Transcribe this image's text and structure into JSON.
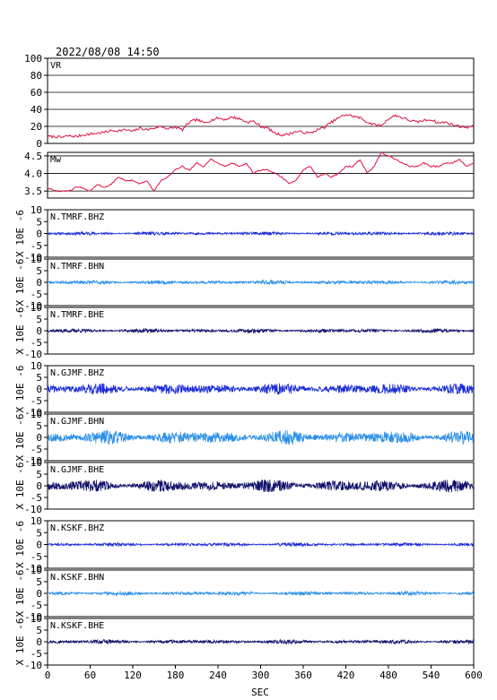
{
  "header": {
    "timestamp": "2022/08/08  14:50"
  },
  "chart_data": {
    "type": "line",
    "xlabel": "SEC",
    "xlim": [
      0,
      600
    ],
    "xticks": [
      "0",
      "60",
      "120",
      "180",
      "240",
      "300",
      "360",
      "420",
      "480",
      "540",
      "600"
    ],
    "seis_ylabel": "X 10E -6",
    "panels": [
      {
        "id": "vr",
        "label": "VR",
        "color": "#dd1144",
        "ylim": [
          0,
          100
        ],
        "yticks": [
          "0",
          "20",
          "40",
          "60",
          "80",
          "100"
        ],
        "grid": true,
        "x": [
          0,
          10,
          20,
          30,
          40,
          50,
          60,
          70,
          80,
          90,
          100,
          110,
          120,
          130,
          140,
          150,
          160,
          170,
          180,
          190,
          200,
          210,
          220,
          230,
          240,
          250,
          260,
          270,
          280,
          290,
          300,
          310,
          320,
          330,
          340,
          350,
          360,
          370,
          380,
          390,
          400,
          410,
          420,
          430,
          440,
          450,
          460,
          470,
          480,
          490,
          500,
          510,
          520,
          530,
          540,
          550,
          560,
          570,
          580,
          590,
          600
        ],
        "values": [
          8,
          8,
          7,
          9,
          8,
          10,
          11,
          12,
          13,
          15,
          15,
          16,
          14,
          18,
          16,
          18,
          20,
          17,
          19,
          16,
          25,
          28,
          24,
          27,
          30,
          28,
          31,
          29,
          25,
          26,
          20,
          18,
          12,
          10,
          11,
          14,
          13,
          12,
          16,
          19,
          25,
          30,
          34,
          32,
          30,
          25,
          22,
          21,
          29,
          33,
          30,
          27,
          25,
          27,
          28,
          24,
          25,
          22,
          20,
          19,
          20
        ]
      },
      {
        "id": "mw",
        "label": "Mw",
        "color": "#dd1144",
        "ylim": [
          3.3,
          4.6
        ],
        "yticks": [
          "3.5",
          "4.0",
          "4.5"
        ],
        "grid": true,
        "x": [
          0,
          10,
          20,
          30,
          40,
          50,
          60,
          70,
          80,
          90,
          100,
          110,
          120,
          130,
          140,
          150,
          160,
          170,
          180,
          190,
          200,
          210,
          220,
          230,
          240,
          250,
          260,
          270,
          280,
          290,
          300,
          310,
          320,
          330,
          340,
          350,
          360,
          370,
          380,
          390,
          400,
          410,
          420,
          430,
          440,
          450,
          460,
          470,
          480,
          490,
          500,
          510,
          520,
          530,
          540,
          550,
          560,
          570,
          580,
          590,
          600
        ],
        "values": [
          3.6,
          3.5,
          3.5,
          3.5,
          3.6,
          3.6,
          3.5,
          3.7,
          3.6,
          3.7,
          3.9,
          3.8,
          3.8,
          3.7,
          3.8,
          3.5,
          3.8,
          3.9,
          4.1,
          4.2,
          4.1,
          4.3,
          4.2,
          4.4,
          4.3,
          4.2,
          4.3,
          4.2,
          4.3,
          4.0,
          4.1,
          4.1,
          4.0,
          3.9,
          3.7,
          3.8,
          4.1,
          4.2,
          3.9,
          4.0,
          3.9,
          4.0,
          4.2,
          4.2,
          4.4,
          4.0,
          4.2,
          4.6,
          4.5,
          4.4,
          4.3,
          4.2,
          4.2,
          4.3,
          4.2,
          4.2,
          4.3,
          4.3,
          4.4,
          4.2,
          4.3
        ]
      },
      {
        "id": "tmrf-bhz",
        "label": "N.TMRF.BHZ",
        "color": "#1a2bd6",
        "ylim": [
          -10,
          10
        ],
        "yticks": [
          "10",
          "5",
          "0",
          "-5",
          "-10"
        ],
        "amplitude": 0.5,
        "seed": 11
      },
      {
        "id": "tmrf-bhn",
        "label": "N.TMRF.BHN",
        "color": "#2b8fe8",
        "ylim": [
          -10,
          10
        ],
        "yticks": [
          "10",
          "5",
          "0",
          "-5",
          "-10"
        ],
        "amplitude": 0.6,
        "seed": 23
      },
      {
        "id": "tmrf-bhe",
        "label": "N.TMRF.BHE",
        "color": "#10106a",
        "ylim": [
          -10,
          10
        ],
        "yticks": [
          "10",
          "5",
          "0",
          "-5",
          "-10"
        ],
        "amplitude": 0.6,
        "seed": 37
      },
      {
        "id": "gjmf-bhz",
        "label": "N.GJMF.BHZ",
        "color": "#1a2bd6",
        "ylim": [
          -10,
          10
        ],
        "yticks": [
          "10",
          "5",
          "0",
          "-5",
          "-10"
        ],
        "amplitude": 1.6,
        "seed": 41
      },
      {
        "id": "gjmf-bhn",
        "label": "N.GJMF.BHN",
        "color": "#2b8fe8",
        "ylim": [
          -10,
          10
        ],
        "yticks": [
          "10",
          "5",
          "0",
          "-5",
          "-10"
        ],
        "amplitude": 2.0,
        "seed": 53
      },
      {
        "id": "gjmf-bhe",
        "label": "N.GJMF.BHE",
        "color": "#10106a",
        "ylim": [
          -10,
          10
        ],
        "yticks": [
          "10",
          "5",
          "0",
          "-5",
          "-10"
        ],
        "amplitude": 1.8,
        "seed": 67
      },
      {
        "id": "kskf-bhz",
        "label": "N.KSKF.BHZ",
        "color": "#1a2bd6",
        "ylim": [
          -10,
          10
        ],
        "yticks": [
          "10",
          "5",
          "0",
          "-5",
          "-10"
        ],
        "amplitude": 0.5,
        "seed": 71
      },
      {
        "id": "kskf-bhn",
        "label": "N.KSKF.BHN",
        "color": "#2b8fe8",
        "ylim": [
          -10,
          10
        ],
        "yticks": [
          "10",
          "5",
          "0",
          "-5",
          "-10"
        ],
        "amplitude": 0.6,
        "seed": 83
      },
      {
        "id": "kskf-bhe",
        "label": "N.KSKF.BHE",
        "color": "#10106a",
        "ylim": [
          -10,
          10
        ],
        "yticks": [
          "10",
          "5",
          "0",
          "-5",
          "-10"
        ],
        "amplitude": 0.6,
        "seed": 97
      }
    ]
  }
}
